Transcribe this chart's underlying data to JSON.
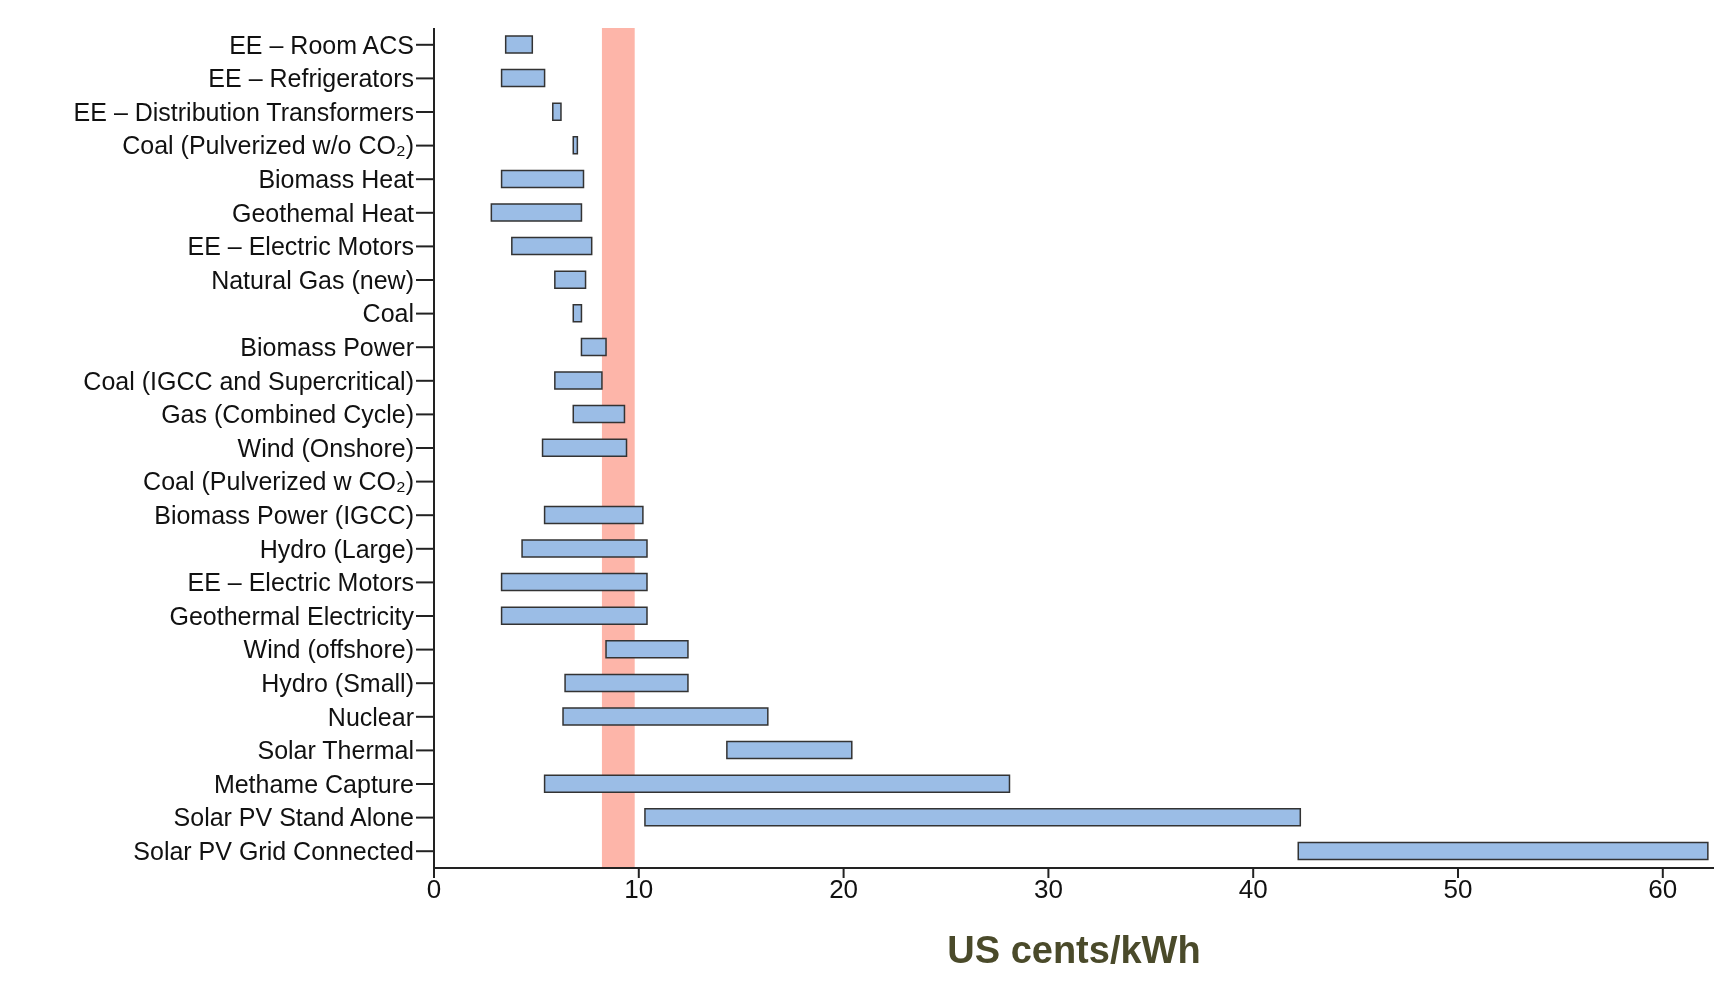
{
  "chart_data": {
    "type": "bar",
    "orientation": "horizontal",
    "xlabel": "US cents/kWh",
    "categories": [
      "EE – Room ACS",
      "EE – Refrigerators",
      "EE – Distribution Transformers",
      "Coal (Pulverized w/o CO₂)",
      "Biomass Heat",
      "Geothemal Heat",
      "EE – Electric Motors",
      "Natural Gas (new)",
      "Coal",
      "Biomass Power",
      "Coal (IGCC and Supercritical)",
      "Gas (Combined Cycle)",
      "Wind (Onshore)",
      "Coal (Pulverized w CO₂)",
      "Biomass Power (IGCC)",
      "Hydro (Large)",
      "EE – Electric Motors",
      "Geothermal Electricity",
      "Wind (offshore)",
      "Hydro (Small)",
      "Nuclear",
      "Solar Thermal",
      "Methame Capture",
      "Solar PV Stand Alone",
      "Solar PV Grid Connected"
    ],
    "base": [
      3.5,
      3.3,
      5.8,
      6.8,
      3.3,
      2.8,
      3.8,
      5.9,
      6.8,
      7.2,
      5.9,
      6.8,
      5.3,
      null,
      5.4,
      4.3,
      3.3,
      3.3,
      8.4,
      6.4,
      6.3,
      14.3,
      5.4,
      10.3,
      42.2
    ],
    "values": [
      1.3,
      2.1,
      0.4,
      0.2,
      4.0,
      4.4,
      3.9,
      1.5,
      0.4,
      1.2,
      2.3,
      2.5,
      4.1,
      null,
      4.8,
      6.1,
      7.1,
      7.1,
      4.0,
      6.0,
      10.0,
      6.1,
      22.7,
      32.0,
      20.0
    ],
    "color": "#9bbde6",
    "xlim": [
      0,
      62.5
    ],
    "xticks": [
      0,
      10,
      20,
      30,
      40,
      50,
      60
    ],
    "bands": [
      {
        "axis": "x",
        "from": 8.2,
        "to": 9.8,
        "color": "#fca393"
      }
    ],
    "grid": false,
    "legend": false
  }
}
